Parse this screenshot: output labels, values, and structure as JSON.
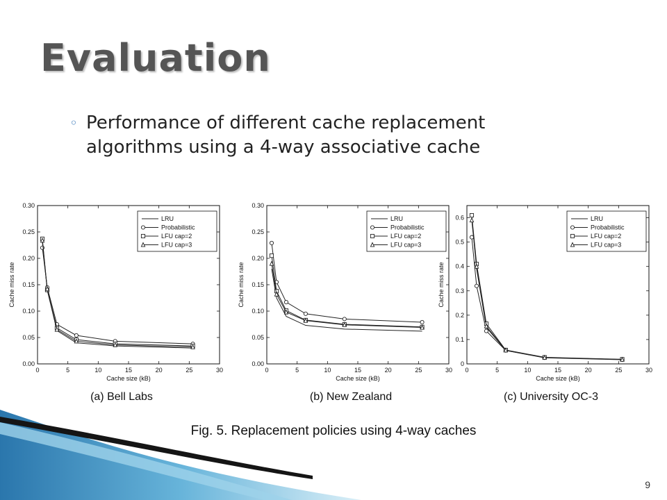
{
  "slide": {
    "title": "Evaluation",
    "bullet_mark": "◦",
    "bullet_text": "Performance of different cache replacement algorithms using a 4-way associative cache",
    "figure_caption": "Fig. 5. Replacement policies using 4-way caches",
    "page_number": "9"
  },
  "colors": {
    "accent": "#3a78b9",
    "title": "#555555"
  },
  "chart_data": [
    {
      "type": "line",
      "caption": "(a) Bell Labs",
      "xlabel": "Cache size (kB)",
      "ylabel": "Cache miss rate",
      "xlim": [
        0,
        30
      ],
      "ylim": [
        0,
        0.3
      ],
      "xticks": [
        0,
        5,
        10,
        15,
        20,
        25,
        30
      ],
      "yticks": [
        0.0,
        0.05,
        0.1,
        0.15,
        0.2,
        0.25,
        0.3
      ],
      "ytick_labels": [
        "0.00",
        "0.05",
        "0.10",
        "0.15",
        "0.20",
        "0.25",
        "0.30"
      ],
      "legend_position": "top-right",
      "x": [
        0.8,
        1.6,
        3.2,
        6.4,
        12.8,
        25.6
      ],
      "series": [
        {
          "name": "LRU",
          "marker": "none",
          "values": [
            0.23,
            0.14,
            0.063,
            0.04,
            0.034,
            0.03
          ]
        },
        {
          "name": "Probabilistic",
          "marker": "circle",
          "values": [
            0.22,
            0.145,
            0.075,
            0.054,
            0.043,
            0.038
          ]
        },
        {
          "name": "LFU cap=2",
          "marker": "square",
          "values": [
            0.237,
            0.14,
            0.068,
            0.046,
            0.038,
            0.034
          ]
        },
        {
          "name": "LFU cap=3",
          "marker": "triangle",
          "values": [
            0.234,
            0.142,
            0.065,
            0.043,
            0.036,
            0.032
          ]
        }
      ]
    },
    {
      "type": "line",
      "caption": "(b) New Zealand",
      "xlabel": "Cache size (kB)",
      "ylabel": "Cache miss rate",
      "xlim": [
        0,
        30
      ],
      "ylim": [
        0,
        0.3
      ],
      "xticks": [
        0,
        5,
        10,
        15,
        20,
        25,
        30
      ],
      "yticks": [
        0.0,
        0.05,
        0.1,
        0.15,
        0.2,
        0.25,
        0.3
      ],
      "ytick_labels": [
        "0.00",
        "0.05",
        "0.10",
        "0.15",
        "0.20",
        "0.25",
        "0.30"
      ],
      "legend_position": "top-right",
      "x": [
        0.8,
        1.6,
        3.2,
        6.4,
        12.8,
        25.6
      ],
      "series": [
        {
          "name": "LRU",
          "marker": "none",
          "values": [
            0.18,
            0.125,
            0.09,
            0.073,
            0.066,
            0.062
          ]
        },
        {
          "name": "Probabilistic",
          "marker": "circle",
          "values": [
            0.229,
            0.155,
            0.117,
            0.095,
            0.085,
            0.079
          ]
        },
        {
          "name": "LFU cap=2",
          "marker": "square",
          "values": [
            0.205,
            0.138,
            0.101,
            0.083,
            0.075,
            0.07
          ]
        },
        {
          "name": "LFU cap=3",
          "marker": "triangle",
          "values": [
            0.19,
            0.132,
            0.098,
            0.082,
            0.074,
            0.069
          ]
        }
      ]
    },
    {
      "type": "line",
      "caption": "(c) University OC-3",
      "xlabel": "Cache size (kB)",
      "ylabel": "Cache miss rate",
      "xlim": [
        0,
        30
      ],
      "ylim": [
        0,
        0.65
      ],
      "xticks": [
        0,
        5,
        10,
        15,
        20,
        25,
        30
      ],
      "yticks": [
        0,
        0.1,
        0.2,
        0.3,
        0.4,
        0.5,
        0.6
      ],
      "ytick_labels": [
        "0",
        "0.1",
        "0.2",
        "0.3",
        "0.4",
        "0.5",
        "0.6"
      ],
      "legend_position": "top-right",
      "x": [
        0.8,
        1.6,
        3.2,
        6.4,
        12.8,
        25.6
      ],
      "series": [
        {
          "name": "LRU",
          "marker": "none",
          "values": [
            0.6,
            0.39,
            0.15,
            0.055,
            0.026,
            0.018
          ]
        },
        {
          "name": "Probabilistic",
          "marker": "circle",
          "values": [
            0.52,
            0.32,
            0.135,
            0.055,
            0.025,
            0.017
          ]
        },
        {
          "name": "LFU cap=2",
          "marker": "square",
          "values": [
            0.61,
            0.41,
            0.165,
            0.057,
            0.027,
            0.019
          ]
        },
        {
          "name": "LFU cap=3",
          "marker": "triangle",
          "values": [
            0.59,
            0.4,
            0.155,
            0.056,
            0.026,
            0.018
          ]
        }
      ]
    }
  ]
}
